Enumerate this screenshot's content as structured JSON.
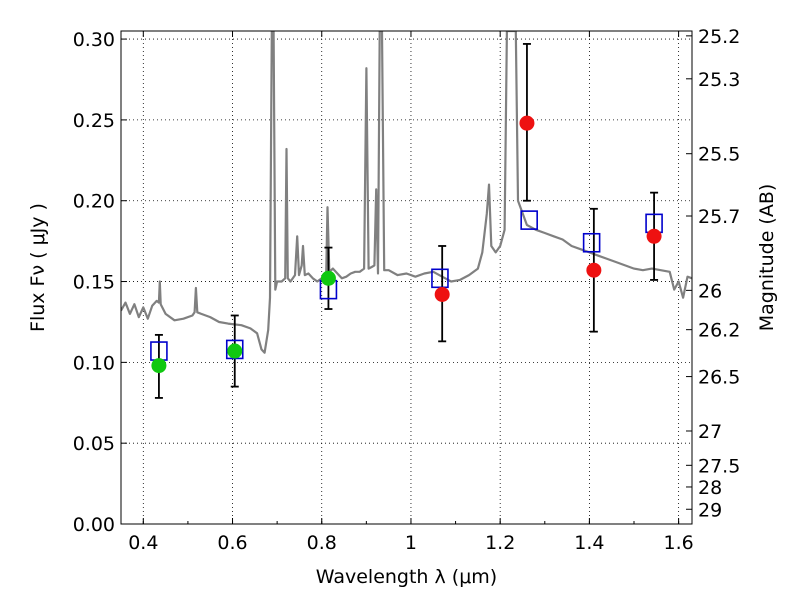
{
  "chart_data": {
    "type": "scatter",
    "xlabel": "Wavelength  λ (μm)",
    "ylabel": "Flux  Fν  ( μJy )",
    "y2label": "Magnitude (AB)",
    "xlim": [
      0.35,
      1.63
    ],
    "ylim": [
      0.0,
      0.305
    ],
    "grid": true,
    "x_ticks": [
      0.4,
      0.6,
      0.8,
      1.0,
      1.2,
      1.4,
      1.6
    ],
    "x_tick_labels": [
      "0.4",
      "0.6",
      "0.8",
      "1",
      "1.2",
      "1.4",
      "1.6"
    ],
    "y_ticks": [
      0.0,
      0.05,
      0.1,
      0.15,
      0.2,
      0.25,
      0.3
    ],
    "y_tick_labels": [
      "0.00",
      "0.05",
      "0.10",
      "0.15",
      "0.20",
      "0.25",
      "0.30"
    ],
    "mag_ticks": [
      "25.2",
      "25.3",
      "25.5",
      "25.7",
      "26",
      "26.2",
      "26.5",
      "27",
      "27.5",
      "28",
      "29"
    ],
    "colors": {
      "spectrum": "#808080",
      "green_points": "#10c810",
      "red_points": "#ee1111",
      "model_squares": "#0000cc",
      "error_bars": "#000000"
    },
    "spectrum": [
      [
        0.35,
        0.132
      ],
      [
        0.36,
        0.137
      ],
      [
        0.37,
        0.13
      ],
      [
        0.38,
        0.136
      ],
      [
        0.39,
        0.128
      ],
      [
        0.4,
        0.134
      ],
      [
        0.41,
        0.127
      ],
      [
        0.42,
        0.135
      ],
      [
        0.43,
        0.138
      ],
      [
        0.435,
        0.137
      ],
      [
        0.437,
        0.15
      ],
      [
        0.439,
        0.136
      ],
      [
        0.45,
        0.13
      ],
      [
        0.47,
        0.126
      ],
      [
        0.49,
        0.127
      ],
      [
        0.51,
        0.129
      ],
      [
        0.515,
        0.131
      ],
      [
        0.518,
        0.146
      ],
      [
        0.521,
        0.131
      ],
      [
        0.53,
        0.13
      ],
      [
        0.55,
        0.128
      ],
      [
        0.57,
        0.125
      ],
      [
        0.59,
        0.124
      ],
      [
        0.62,
        0.123
      ],
      [
        0.64,
        0.121
      ],
      [
        0.655,
        0.118
      ],
      [
        0.665,
        0.108
      ],
      [
        0.672,
        0.106
      ],
      [
        0.68,
        0.12
      ],
      [
        0.684,
        0.14
      ],
      [
        0.688,
        0.305
      ],
      [
        0.692,
        0.305
      ],
      [
        0.696,
        0.145
      ],
      [
        0.7,
        0.15
      ],
      [
        0.71,
        0.15
      ],
      [
        0.718,
        0.152
      ],
      [
        0.721,
        0.232
      ],
      [
        0.724,
        0.152
      ],
      [
        0.73,
        0.15
      ],
      [
        0.74,
        0.154
      ],
      [
        0.745,
        0.178
      ],
      [
        0.749,
        0.154
      ],
      [
        0.755,
        0.16
      ],
      [
        0.758,
        0.172
      ],
      [
        0.762,
        0.154
      ],
      [
        0.77,
        0.155
      ],
      [
        0.78,
        0.152
      ],
      [
        0.79,
        0.15
      ],
      [
        0.8,
        0.152
      ],
      [
        0.81,
        0.155
      ],
      [
        0.813,
        0.196
      ],
      [
        0.817,
        0.156
      ],
      [
        0.825,
        0.158
      ],
      [
        0.835,
        0.155
      ],
      [
        0.845,
        0.152
      ],
      [
        0.855,
        0.153
      ],
      [
        0.865,
        0.155
      ],
      [
        0.875,
        0.156
      ],
      [
        0.885,
        0.156
      ],
      [
        0.895,
        0.158
      ],
      [
        0.9,
        0.282
      ],
      [
        0.905,
        0.158
      ],
      [
        0.912,
        0.159
      ],
      [
        0.918,
        0.16
      ],
      [
        0.922,
        0.207
      ],
      [
        0.926,
        0.155
      ],
      [
        0.93,
        0.305
      ],
      [
        0.935,
        0.305
      ],
      [
        0.94,
        0.157
      ],
      [
        0.95,
        0.157
      ],
      [
        0.97,
        0.154
      ],
      [
        0.99,
        0.155
      ],
      [
        1.01,
        0.153
      ],
      [
        1.03,
        0.155
      ],
      [
        1.05,
        0.156
      ],
      [
        1.07,
        0.153
      ],
      [
        1.09,
        0.15
      ],
      [
        1.11,
        0.151
      ],
      [
        1.13,
        0.154
      ],
      [
        1.15,
        0.158
      ],
      [
        1.16,
        0.168
      ],
      [
        1.17,
        0.192
      ],
      [
        1.175,
        0.21
      ],
      [
        1.18,
        0.172
      ],
      [
        1.19,
        0.168
      ],
      [
        1.2,
        0.172
      ],
      [
        1.21,
        0.182
      ],
      [
        1.215,
        0.305
      ],
      [
        1.235,
        0.305
      ],
      [
        1.24,
        0.2
      ],
      [
        1.26,
        0.185
      ],
      [
        1.28,
        0.182
      ],
      [
        1.3,
        0.18
      ],
      [
        1.32,
        0.178
      ],
      [
        1.34,
        0.176
      ],
      [
        1.36,
        0.172
      ],
      [
        1.38,
        0.17
      ],
      [
        1.4,
        0.168
      ],
      [
        1.42,
        0.166
      ],
      [
        1.44,
        0.164
      ],
      [
        1.46,
        0.162
      ],
      [
        1.48,
        0.16
      ],
      [
        1.5,
        0.158
      ],
      [
        1.52,
        0.157
      ],
      [
        1.54,
        0.158
      ],
      [
        1.56,
        0.157
      ],
      [
        1.58,
        0.156
      ],
      [
        1.59,
        0.145
      ],
      [
        1.6,
        0.15
      ],
      [
        1.61,
        0.14
      ],
      [
        1.62,
        0.153
      ],
      [
        1.63,
        0.152
      ]
    ],
    "observed_green": [
      {
        "x": 0.435,
        "y": 0.098,
        "yerr_low": 0.078,
        "yerr_high": 0.117
      },
      {
        "x": 0.605,
        "y": 0.107,
        "yerr_low": 0.085,
        "yerr_high": 0.129
      },
      {
        "x": 0.815,
        "y": 0.152,
        "yerr_low": 0.133,
        "yerr_high": 0.171
      }
    ],
    "observed_red": [
      {
        "x": 1.07,
        "y": 0.142,
        "yerr_low": 0.113,
        "yerr_high": 0.172
      },
      {
        "x": 1.26,
        "y": 0.248,
        "yerr_low": 0.2,
        "yerr_high": 0.297
      },
      {
        "x": 1.41,
        "y": 0.157,
        "yerr_low": 0.119,
        "yerr_high": 0.195
      },
      {
        "x": 1.545,
        "y": 0.178,
        "yerr_low": 0.151,
        "yerr_high": 0.205
      }
    ],
    "model_squares": [
      {
        "x": 0.435,
        "y": 0.107
      },
      {
        "x": 0.605,
        "y": 0.108
      },
      {
        "x": 0.815,
        "y": 0.145
      },
      {
        "x": 1.065,
        "y": 0.152
      },
      {
        "x": 1.265,
        "y": 0.188
      },
      {
        "x": 1.405,
        "y": 0.174
      },
      {
        "x": 1.545,
        "y": 0.186
      }
    ]
  }
}
